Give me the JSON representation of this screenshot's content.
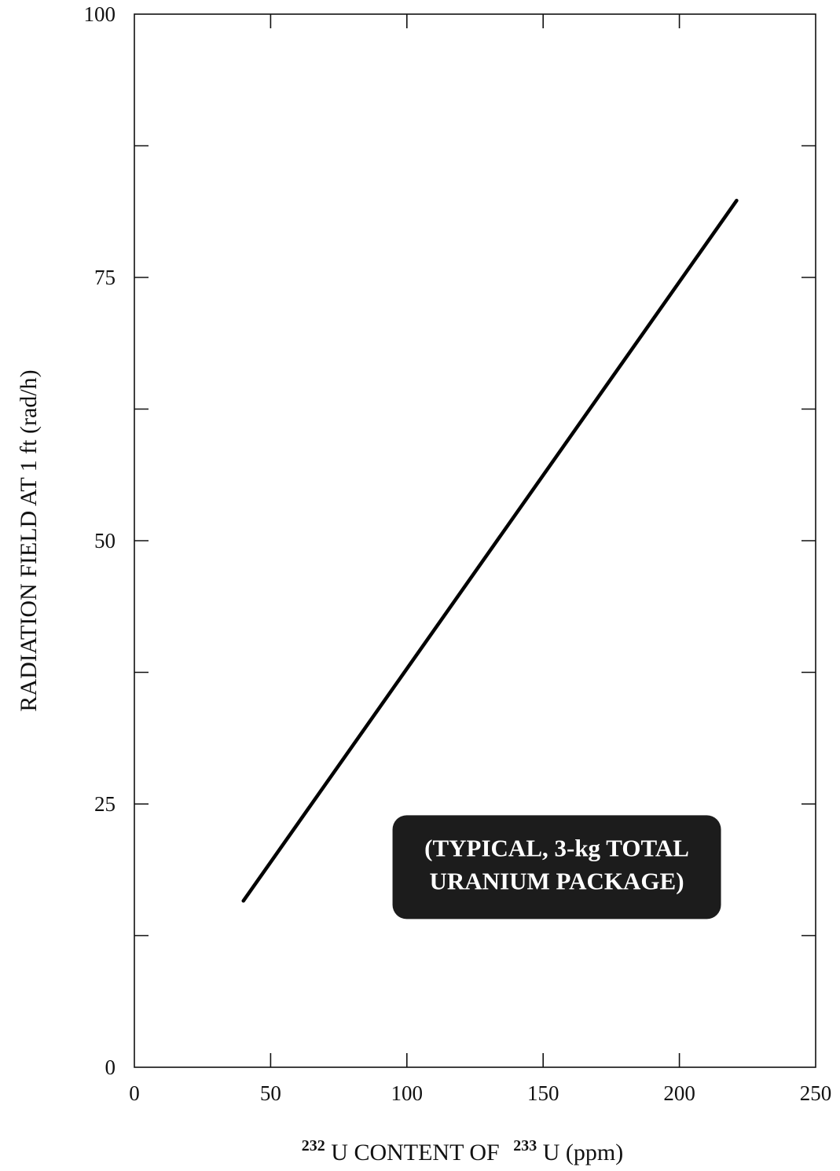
{
  "chart_data": {
    "type": "line",
    "xlabel": {
      "iso1": "232",
      "mid": "U CONTENT OF",
      "iso2": "233",
      "end": "U (ppm)"
    },
    "ylabel": "RADIATION FIELD AT 1 ft (rad/h)",
    "xlim": [
      0,
      250
    ],
    "ylim": [
      0,
      100
    ],
    "x_ticks": [
      0,
      50,
      100,
      150,
      200,
      250
    ],
    "y_ticks": [
      0,
      25,
      50,
      75,
      100
    ],
    "x_minor_ticks": [
      50,
      100,
      150,
      200
    ],
    "y_minor_ticks": [
      12.5,
      37.5,
      62.5,
      87.5
    ],
    "grid": false,
    "series": [
      {
        "x": [
          40,
          221
        ],
        "y": [
          15.8,
          82.3
        ],
        "color": "#000000"
      }
    ],
    "annotation": {
      "lines": [
        "(TYPICAL, 3-kg TOTAL",
        "URANIUM PACKAGE)"
      ],
      "x": 155,
      "y": 19
    }
  }
}
